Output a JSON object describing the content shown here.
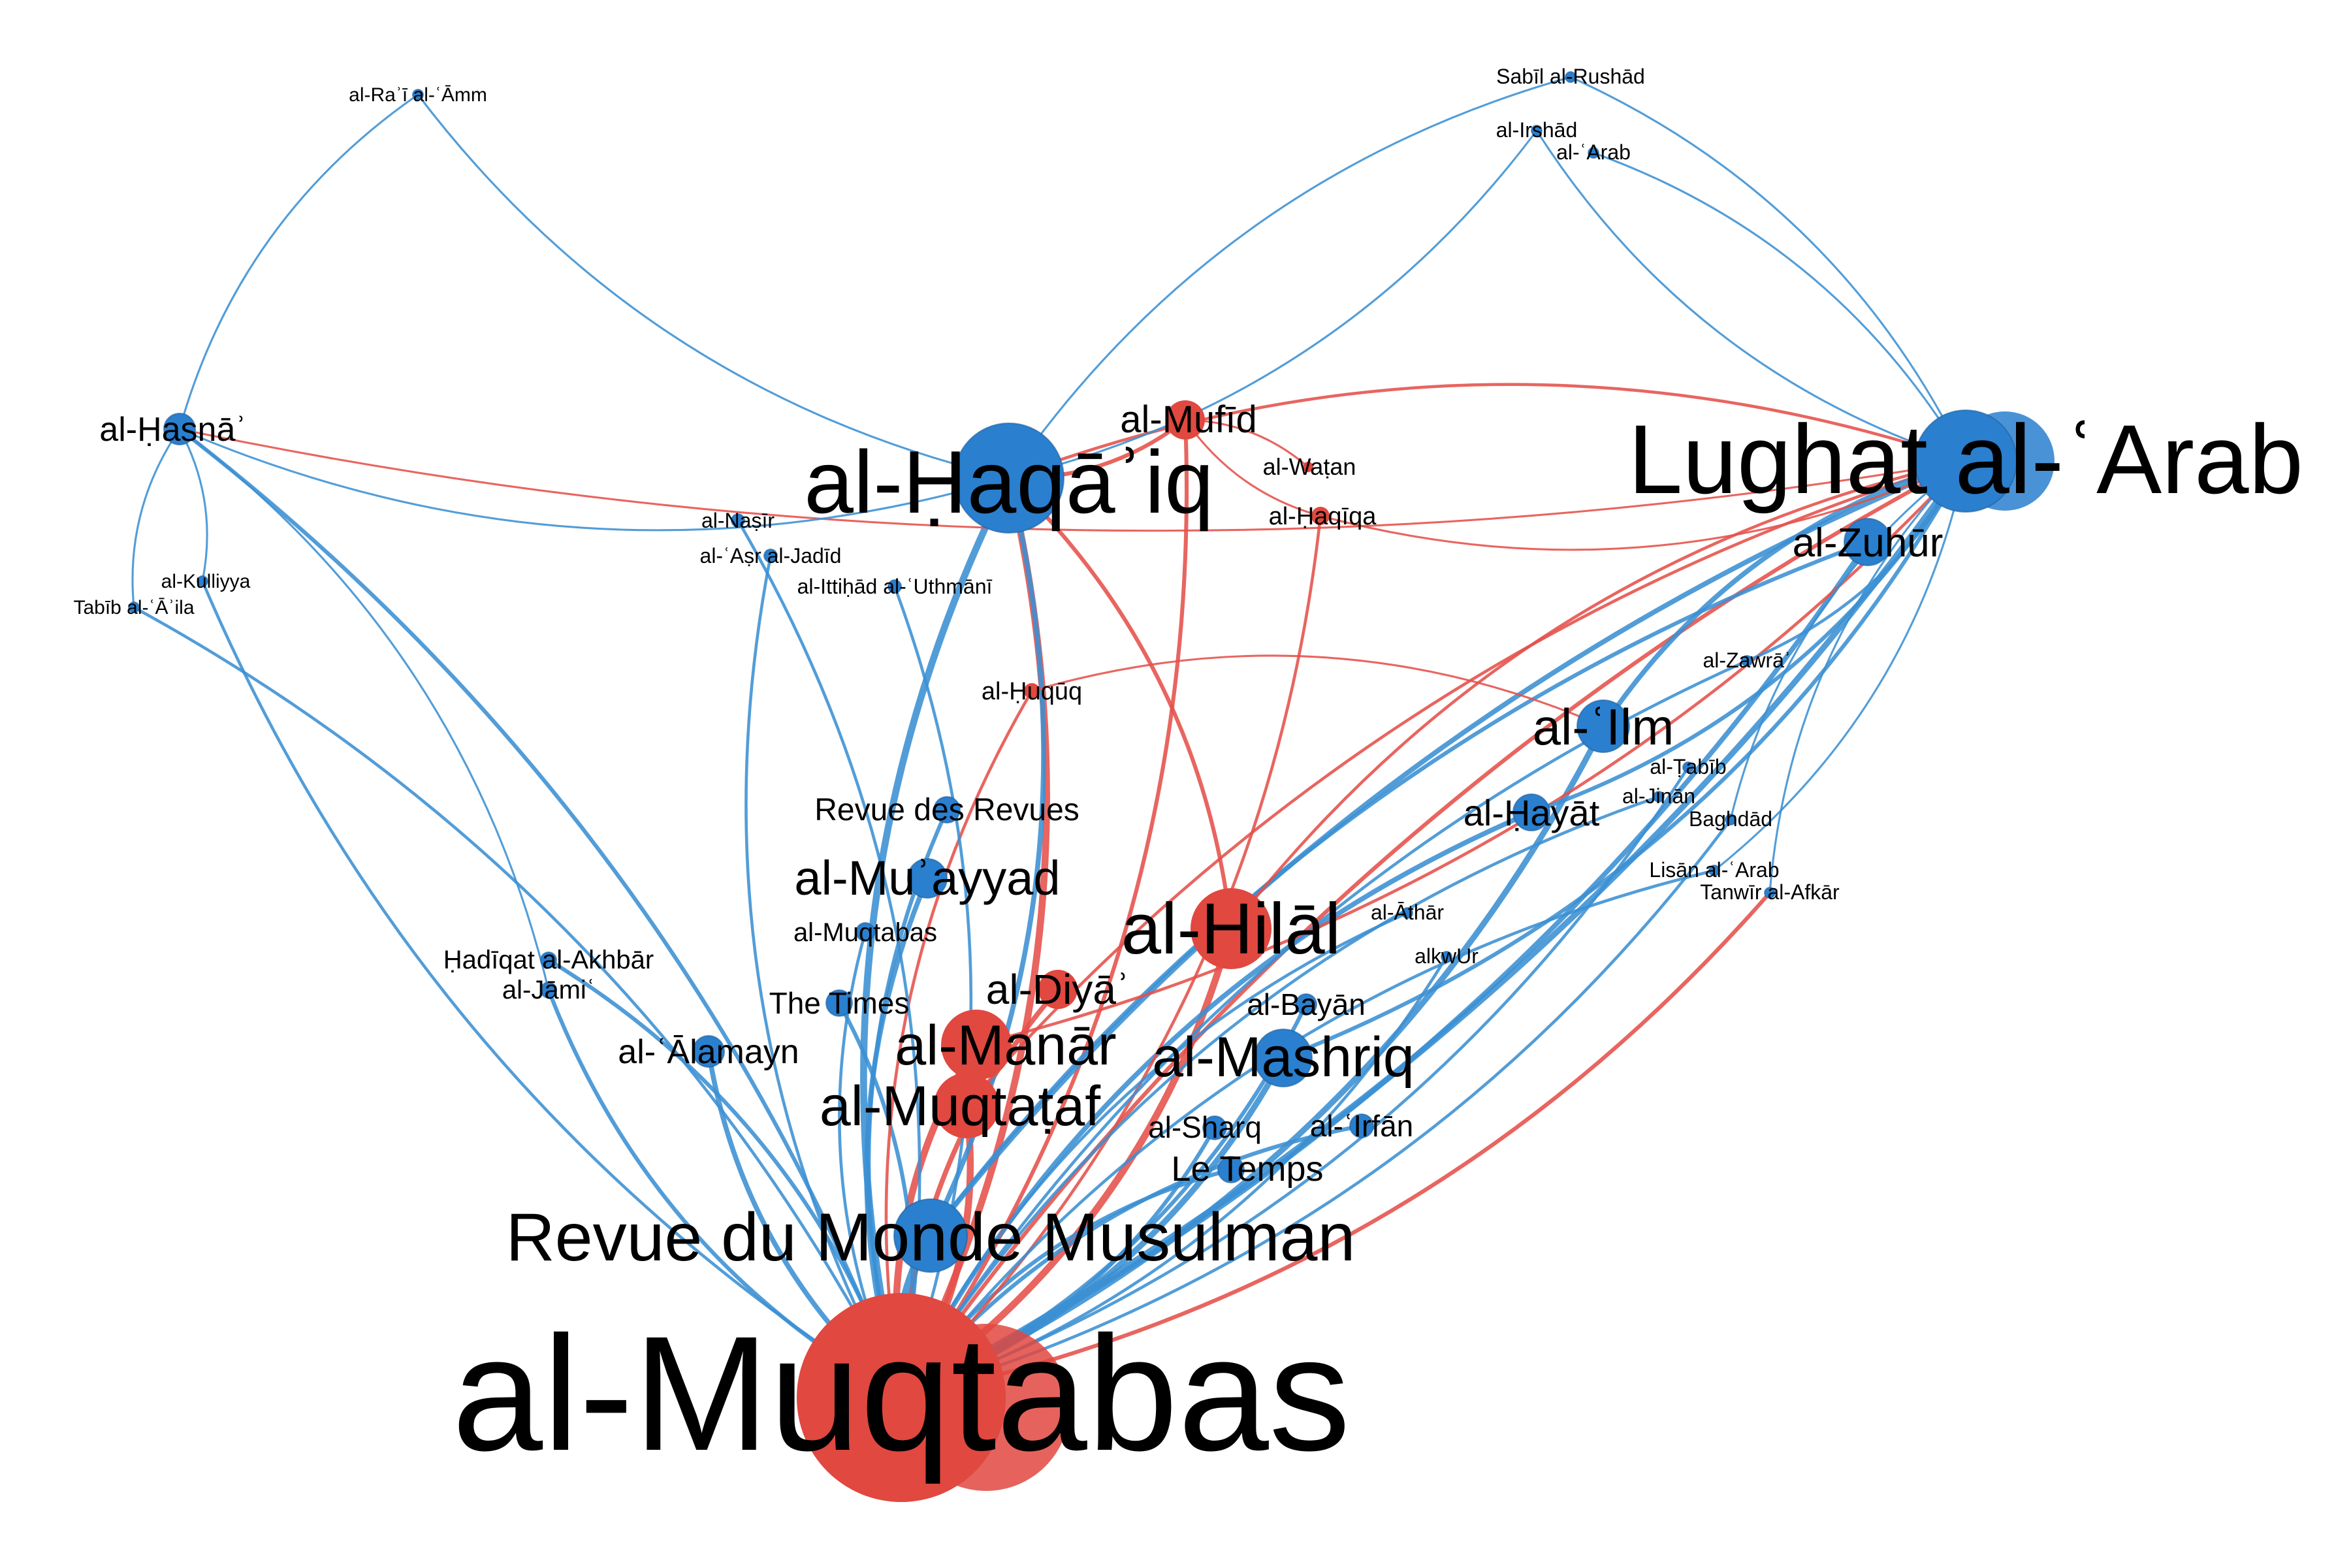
{
  "colors": {
    "blue": "#3a8fd3",
    "blue_node": "#2a7fcf",
    "red": "#e5504a",
    "red_node": "#e04840",
    "background": "#ffffff"
  },
  "nodes": [
    {
      "id": "muqtabas",
      "label": "al-Muqtabas",
      "color": "red",
      "weight": 10
    },
    {
      "id": "rmm",
      "label": "Revue du Monde Musulman",
      "color": "blue",
      "weight": 7
    },
    {
      "id": "haqaiq",
      "label": "al-Ḥaqāʾiq",
      "color": "blue",
      "weight": 8
    },
    {
      "id": "lughat",
      "label": "Lughat al-ʿArab",
      "color": "blue",
      "weight": 8
    },
    {
      "id": "hilal",
      "label": "al-Hilāl",
      "color": "red",
      "weight": 6
    },
    {
      "id": "manar",
      "label": "al-Manār",
      "color": "red",
      "weight": 5
    },
    {
      "id": "muqtataf",
      "label": "al-Muqtaṭaf",
      "color": "red",
      "weight": 5
    },
    {
      "id": "mashriq",
      "label": "al-Mashriq",
      "color": "blue",
      "weight": 5
    },
    {
      "id": "muayyad",
      "label": "al-Muʾayyad",
      "color": "blue",
      "weight": 4
    },
    {
      "id": "ilm",
      "label": "al-ʿIlm",
      "color": "blue",
      "weight": 4
    },
    {
      "id": "hayat",
      "label": "al-Ḥayāt",
      "color": "blue",
      "weight": 3
    },
    {
      "id": "zuhur",
      "label": "al-Zuhūr",
      "color": "blue",
      "weight": 3
    },
    {
      "id": "diya",
      "label": "al-Diyāʾ",
      "color": "red",
      "weight": 3
    },
    {
      "id": "hasna",
      "label": "al-Ḥasnāʾ",
      "color": "blue",
      "weight": 3
    },
    {
      "id": "alamayn",
      "label": "al-ʿĀlamayn",
      "color": "blue",
      "weight": 3
    },
    {
      "id": "mufid",
      "label": "al-Mufīd",
      "color": "red",
      "weight": 3
    },
    {
      "id": "revuedesrevues",
      "label": "Revue des Revues",
      "color": "blue",
      "weight": 3
    },
    {
      "id": "times",
      "label": "The Times",
      "color": "blue",
      "weight": 3
    },
    {
      "id": "letemps",
      "label": "Le Temps",
      "color": "blue",
      "weight": 3
    },
    {
      "id": "sharq",
      "label": "al-Sharq",
      "color": "blue",
      "weight": 3
    },
    {
      "id": "irfan",
      "label": "al-ʿIrfān",
      "color": "blue",
      "weight": 2
    },
    {
      "id": "bayan",
      "label": "al-Bayān",
      "color": "blue",
      "weight": 2
    },
    {
      "id": "huquq",
      "label": "al-Ḥuqūq",
      "color": "red",
      "weight": 2
    },
    {
      "id": "haqiqa",
      "label": "al-Ḥaqīqa",
      "color": "red",
      "weight": 2
    },
    {
      "id": "watan",
      "label": "al-Waṭan",
      "color": "red",
      "weight": 2
    },
    {
      "id": "muqtabas2",
      "label": "al-Muqtabas",
      "color": "blue",
      "weight": 2
    },
    {
      "id": "hadiqat",
      "label": "Ḥadīqat al-Akhbār",
      "color": "blue",
      "weight": 2
    },
    {
      "id": "jami",
      "label": "al-Jāmiʿ",
      "color": "blue",
      "weight": 2
    },
    {
      "id": "nasir",
      "label": "al-Naṣīr",
      "color": "blue",
      "weight": 1
    },
    {
      "id": "asrjadid",
      "label": "al-ʿAṣr al-Jadīd",
      "color": "blue",
      "weight": 1
    },
    {
      "id": "ittihad",
      "label": "al-Ittiḥād al-ʿUthmānī",
      "color": "blue",
      "weight": 1
    },
    {
      "id": "kulliyya",
      "label": "al-Kulliyya",
      "color": "blue",
      "weight": 1
    },
    {
      "id": "tabib_aila",
      "label": "Tabīb al-ʿĀʾila",
      "color": "blue",
      "weight": 1
    },
    {
      "id": "raiamm",
      "label": "al-Raʾī al-ʿĀmm",
      "color": "blue",
      "weight": 1
    },
    {
      "id": "sabil",
      "label": "Sabīl al-Rushād",
      "color": "blue",
      "weight": 1
    },
    {
      "id": "irshad",
      "label": "al-Irshād",
      "color": "blue",
      "weight": 1
    },
    {
      "id": "arab",
      "label": "al-ʿArab",
      "color": "blue",
      "weight": 1
    },
    {
      "id": "zawra",
      "label": "al-Zawrāʾ",
      "color": "blue",
      "weight": 1
    },
    {
      "id": "tabib",
      "label": "al-Ṭabīb",
      "color": "blue",
      "weight": 1
    },
    {
      "id": "jinan",
      "label": "al-Jinān",
      "color": "blue",
      "weight": 1
    },
    {
      "id": "baghdad",
      "label": "Baghdād",
      "color": "blue",
      "weight": 1
    },
    {
      "id": "lisan",
      "label": "Lisān al-ʿArab",
      "color": "blue",
      "weight": 1
    },
    {
      "id": "tanwir",
      "label": "Tanwīr al-Afkār",
      "color": "blue",
      "weight": 1
    },
    {
      "id": "athar",
      "label": "al-Āthār",
      "color": "blue",
      "weight": 1
    },
    {
      "id": "alkwur",
      "label": "alkwUr",
      "color": "blue",
      "weight": 1
    }
  ],
  "edges": [
    {
      "source": "muqtabas",
      "target": "haqaiq",
      "color": "red",
      "weight": 6
    },
    {
      "source": "muqtabas",
      "target": "haqaiq",
      "color": "blue",
      "weight": 6
    },
    {
      "source": "muqtabas",
      "target": "lughat",
      "color": "blue",
      "weight": 5
    },
    {
      "source": "muqtabas",
      "target": "lughat",
      "color": "red",
      "weight": 3
    },
    {
      "source": "muqtabas",
      "target": "hilal",
      "color": "red",
      "weight": 6
    },
    {
      "source": "muqtabas",
      "target": "manar",
      "color": "red",
      "weight": 6
    },
    {
      "source": "muqtabas",
      "target": "muqtataf",
      "color": "red",
      "weight": 6
    },
    {
      "source": "muqtabas",
      "target": "rmm",
      "color": "blue",
      "weight": 8
    },
    {
      "source": "muqtabas",
      "target": "mashriq",
      "color": "blue",
      "weight": 5
    },
    {
      "source": "muqtabas",
      "target": "muayyad",
      "color": "blue",
      "weight": 4
    },
    {
      "source": "muqtabas",
      "target": "ilm",
      "color": "blue",
      "weight": 5
    },
    {
      "source": "muqtabas",
      "target": "hayat",
      "color": "blue",
      "weight": 4
    },
    {
      "source": "muqtabas",
      "target": "zuhur",
      "color": "blue",
      "weight": 4
    },
    {
      "source": "muqtabas",
      "target": "diya",
      "color": "red",
      "weight": 4
    },
    {
      "source": "muqtabas",
      "target": "hasna",
      "color": "blue",
      "weight": 3
    },
    {
      "source": "muqtabas",
      "target": "alamayn",
      "color": "blue",
      "weight": 4
    },
    {
      "source": "muqtabas",
      "target": "mufid",
      "color": "red",
      "weight": 3
    },
    {
      "source": "muqtabas",
      "target": "revuedesrevues",
      "color": "blue",
      "weight": 3
    },
    {
      "source": "muqtabas",
      "target": "times",
      "color": "blue",
      "weight": 3
    },
    {
      "source": "muqtabas",
      "target": "letemps",
      "color": "blue",
      "weight": 3
    },
    {
      "source": "muqtabas",
      "target": "sharq",
      "color": "blue",
      "weight": 3
    },
    {
      "source": "muqtabas",
      "target": "irfan",
      "color": "blue",
      "weight": 3
    },
    {
      "source": "muqtabas",
      "target": "bayan",
      "color": "blue",
      "weight": 3
    },
    {
      "source": "muqtabas",
      "target": "huquq",
      "color": "red",
      "weight": 2
    },
    {
      "source": "muqtabas",
      "target": "haqiqa",
      "color": "red",
      "weight": 2
    },
    {
      "source": "muqtabas",
      "target": "muqtabas2",
      "color": "blue",
      "weight": 2
    },
    {
      "source": "muqtabas",
      "target": "hadiqat",
      "color": "blue",
      "weight": 3
    },
    {
      "source": "muqtabas",
      "target": "jami",
      "color": "blue",
      "weight": 3
    },
    {
      "source": "muqtabas",
      "target": "nasir",
      "color": "blue",
      "weight": 2
    },
    {
      "source": "muqtabas",
      "target": "asrjadid",
      "color": "blue",
      "weight": 2
    },
    {
      "source": "muqtabas",
      "target": "ittihad",
      "color": "blue",
      "weight": 2
    },
    {
      "source": "muqtabas",
      "target": "kulliyya",
      "color": "blue",
      "weight": 2
    },
    {
      "source": "muqtabas",
      "target": "tabib_aila",
      "color": "blue",
      "weight": 2
    },
    {
      "source": "muqtabas",
      "target": "zawra",
      "color": "blue",
      "weight": 2
    },
    {
      "source": "muqtabas",
      "target": "tabib",
      "color": "blue",
      "weight": 2
    },
    {
      "source": "muqtabas",
      "target": "jinan",
      "color": "blue",
      "weight": 2
    },
    {
      "source": "muqtabas",
      "target": "baghdad",
      "color": "blue",
      "weight": 2
    },
    {
      "source": "muqtabas",
      "target": "lisan",
      "color": "blue",
      "weight": 2
    },
    {
      "source": "muqtabas",
      "target": "tanwir",
      "color": "red",
      "weight": 3
    },
    {
      "source": "muqtabas",
      "target": "athar",
      "color": "blue",
      "weight": 2
    },
    {
      "source": "muqtabas",
      "target": "alkwur",
      "color": "blue",
      "weight": 2
    },
    {
      "source": "rmm",
      "target": "lughat",
      "color": "blue",
      "weight": 4
    },
    {
      "source": "rmm",
      "target": "haqaiq",
      "color": "blue",
      "weight": 4
    },
    {
      "source": "rmm",
      "target": "zuhur",
      "color": "blue",
      "weight": 3
    },
    {
      "source": "manar",
      "target": "lughat",
      "color": "red",
      "weight": 2
    },
    {
      "source": "hilal",
      "target": "lughat",
      "color": "red",
      "weight": 2
    },
    {
      "source": "hilal",
      "target": "haqaiq",
      "color": "red",
      "weight": 3
    },
    {
      "source": "muqtataf",
      "target": "lughat",
      "color": "red",
      "weight": 2
    },
    {
      "source": "mashriq",
      "target": "lughat",
      "color": "blue",
      "weight": 3
    },
    {
      "source": "ilm",
      "target": "lughat",
      "color": "blue",
      "weight": 4
    },
    {
      "source": "hayat",
      "target": "lughat",
      "color": "blue",
      "weight": 3
    },
    {
      "source": "haqaiq",
      "target": "lughat",
      "color": "red",
      "weight": 2
    },
    {
      "source": "haqaiq",
      "target": "mufid",
      "color": "red",
      "weight": 3
    },
    {
      "source": "haqaiq",
      "target": "sabil",
      "color": "blue",
      "weight": 1
    },
    {
      "source": "haqaiq",
      "target": "irshad",
      "color": "blue",
      "weight": 1
    },
    {
      "source": "haqaiq",
      "target": "raiamm",
      "color": "blue",
      "weight": 1
    },
    {
      "source": "hasna",
      "target": "lughat",
      "color": "red",
      "weight": 1
    },
    {
      "source": "hasna",
      "target": "raiamm",
      "color": "blue",
      "weight": 1
    },
    {
      "source": "hasna",
      "target": "haqaiq",
      "color": "blue",
      "weight": 1
    },
    {
      "source": "hasna",
      "target": "kulliyya",
      "color": "blue",
      "weight": 1
    },
    {
      "source": "hasna",
      "target": "tabib_aila",
      "color": "blue",
      "weight": 1
    },
    {
      "source": "hasna",
      "target": "jami",
      "color": "blue",
      "weight": 1
    },
    {
      "source": "lughat",
      "target": "sabil",
      "color": "blue",
      "weight": 1
    },
    {
      "source": "lughat",
      "target": "irshad",
      "color": "blue",
      "weight": 1
    },
    {
      "source": "lughat",
      "target": "arab",
      "color": "blue",
      "weight": 1
    },
    {
      "source": "lughat",
      "target": "zawra",
      "color": "blue",
      "weight": 2
    },
    {
      "source": "lughat",
      "target": "baghdad",
      "color": "blue",
      "weight": 1
    },
    {
      "source": "lughat",
      "target": "lisan",
      "color": "blue",
      "weight": 1
    },
    {
      "source": "lughat",
      "target": "tanwir",
      "color": "blue",
      "weight": 1
    },
    {
      "source": "mufid",
      "target": "watan",
      "color": "red",
      "weight": 1
    },
    {
      "source": "mufid",
      "target": "haqiqa",
      "color": "red",
      "weight": 1
    },
    {
      "source": "huquq",
      "target": "ilm",
      "color": "red",
      "weight": 1
    },
    {
      "source": "haqiqa",
      "target": "lughat",
      "color": "red",
      "weight": 1
    }
  ]
}
